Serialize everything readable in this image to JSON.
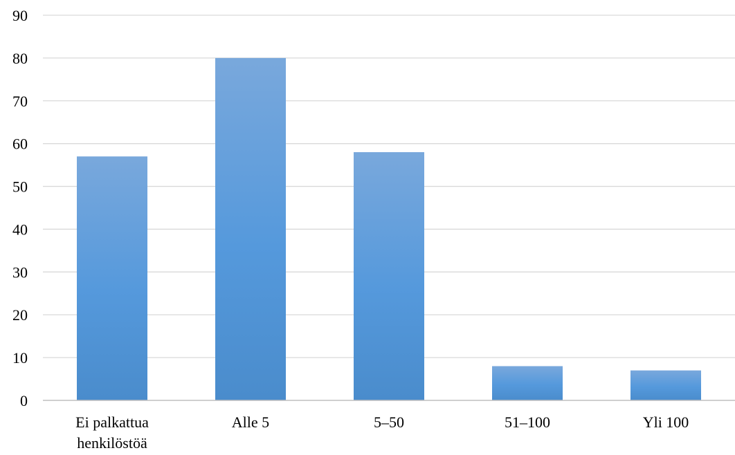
{
  "chart_data": {
    "type": "bar",
    "categories": [
      "Ei palkattua henkilöstöä",
      "Alle 5",
      "5–50",
      "51–100",
      "Yli 100"
    ],
    "category_label_lines": [
      [
        "Ei palkattua",
        "henkilöstöä"
      ],
      [
        "Alle 5"
      ],
      [
        "5–50"
      ],
      [
        "51–100"
      ],
      [
        "Yli 100"
      ]
    ],
    "values": [
      57,
      80,
      58,
      8,
      7
    ],
    "title": "",
    "xlabel": "",
    "ylabel": "",
    "ylim": [
      0,
      90
    ],
    "yticks": [
      0,
      10,
      20,
      30,
      40,
      50,
      60,
      70,
      80,
      90
    ],
    "grid": true,
    "legend": "none",
    "colors": {
      "bar_top": "#79a8dc",
      "bar_bottom": "#4a8ccc",
      "gridline": "#d9d9d9",
      "axis": "#bfbfbf"
    }
  }
}
